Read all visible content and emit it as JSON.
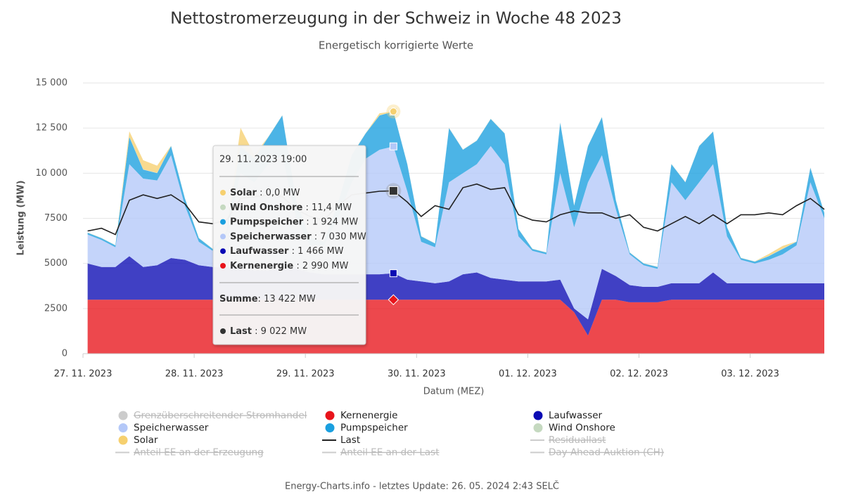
{
  "chart_data": {
    "type": "stacked_area",
    "title": "Nettostromerzeugung in der Schweiz in Woche 48 2023",
    "subtitle": "Energetisch korrigierte Werte",
    "y_label": "Leistung (MW)",
    "x_label": "Datum (MEZ)",
    "footer": "Energy-Charts.info - letztes Update: 26. 05. 2024 2:43 SELČ",
    "grid": true,
    "ylim": [
      0,
      15000
    ],
    "yticks": [
      0,
      2500,
      5000,
      7500,
      {
        "value": 10000,
        "label": "10 000"
      },
      {
        "value": 12500,
        "label": "12 500"
      },
      {
        "value": 15000,
        "label": "15 000"
      }
    ],
    "xlim": [
      "2023-11-27T00:00",
      "2023-12-03T16:00"
    ],
    "xticks": [
      {
        "value": "2023-11-27T00:00",
        "label": "27. 11. 2023"
      },
      {
        "value": "2023-11-28T00:00",
        "label": "28. 11. 2023"
      },
      {
        "value": "2023-11-29T00:00",
        "label": "29. 11. 2023"
      },
      {
        "value": "2023-11-30T00:00",
        "label": "30. 11. 2023"
      },
      {
        "value": "2023-12-01T00:00",
        "label": "01. 12. 2023"
      },
      {
        "value": "2023-12-02T00:00",
        "label": "02. 12. 2023"
      },
      {
        "value": "2023-12-03T00:00",
        "label": "03. 12. 2023"
      }
    ],
    "x": [
      "2023-11-27T01:00",
      "2023-11-27T04:00",
      "2023-11-27T07:00",
      "2023-11-27T10:00",
      "2023-11-27T13:00",
      "2023-11-27T16:00",
      "2023-11-27T19:00",
      "2023-11-27T22:00",
      "2023-11-28T01:00",
      "2023-11-28T04:00",
      "2023-11-28T07:00",
      "2023-11-28T10:00",
      "2023-11-28T13:00",
      "2023-11-28T16:00",
      "2023-11-28T19:00",
      "2023-11-28T22:00",
      "2023-11-29T01:00",
      "2023-11-29T04:00",
      "2023-11-29T07:00",
      "2023-11-29T10:00",
      "2023-11-29T13:00",
      "2023-11-29T16:00",
      "2023-11-29T19:00",
      "2023-11-29T22:00",
      "2023-11-30T01:00",
      "2023-11-30T04:00",
      "2023-11-30T07:00",
      "2023-11-30T10:00",
      "2023-11-30T13:00",
      "2023-11-30T16:00",
      "2023-11-30T19:00",
      "2023-11-30T22:00",
      "2023-12-01T01:00",
      "2023-12-01T04:00",
      "2023-12-01T07:00",
      "2023-12-01T10:00",
      "2023-12-01T13:00",
      "2023-12-01T16:00",
      "2023-12-01T19:00",
      "2023-12-01T22:00",
      "2023-12-02T01:00",
      "2023-12-02T04:00",
      "2023-12-02T07:00",
      "2023-12-02T10:00",
      "2023-12-02T13:00",
      "2023-12-02T16:00",
      "2023-12-02T19:00",
      "2023-12-02T22:00",
      "2023-12-03T01:00",
      "2023-12-03T04:00",
      "2023-12-03T07:00",
      "2023-12-03T10:00",
      "2023-12-03T13:00",
      "2023-12-03T16:00"
    ],
    "series": [
      {
        "name": "Grenzüberschreitender Stromhandel",
        "type": "area",
        "color": "#cccccc",
        "visible": false
      },
      {
        "name": "Kernenergie",
        "type": "area",
        "color": "#e8141b",
        "visible": true,
        "values": [
          2990,
          2990,
          2990,
          2990,
          2990,
          2990,
          2990,
          2990,
          2990,
          2990,
          2990,
          2990,
          2990,
          2990,
          2990,
          2990,
          2990,
          2990,
          2990,
          2990,
          2990,
          2990,
          2990,
          2990,
          2990,
          2990,
          2990,
          2990,
          2990,
          2990,
          2990,
          2990,
          2990,
          2990,
          2990,
          2300,
          1000,
          2990,
          2990,
          2850,
          2850,
          2850,
          2990,
          2990,
          2990,
          2990,
          2990,
          2990,
          2990,
          2990,
          2990,
          2990,
          2990,
          2990
        ]
      },
      {
        "name": "Laufwasser",
        "type": "area",
        "color": "#0a0ab4",
        "visible": true,
        "values": [
          2010,
          1810,
          1810,
          2410,
          1810,
          1910,
          2310,
          2210,
          1910,
          1810,
          1810,
          1710,
          1610,
          1610,
          1710,
          1710,
          1510,
          1410,
          1410,
          1410,
          1410,
          1410,
          1466,
          1110,
          1010,
          910,
          1010,
          1410,
          1510,
          1210,
          1110,
          1010,
          1010,
          1010,
          1110,
          200,
          900,
          1710,
          1310,
          950,
          850,
          850,
          910,
          910,
          910,
          1510,
          910,
          910,
          910,
          910,
          910,
          910,
          910,
          910
        ]
      },
      {
        "name": "Speicherwasser",
        "type": "area",
        "color": "#b4c8f8",
        "visible": true,
        "values": [
          1600,
          1500,
          1100,
          5100,
          4900,
          4700,
          5700,
          3000,
          1300,
          900,
          1800,
          5300,
          4900,
          5900,
          6300,
          2800,
          1500,
          1600,
          3100,
          5100,
          6400,
          6900,
          7030,
          4900,
          2200,
          2000,
          5500,
          5600,
          6000,
          7300,
          6400,
          2500,
          1700,
          1500,
          5900,
          4500,
          7600,
          6300,
          3700,
          1700,
          1200,
          1000,
          5600,
          4600,
          5600,
          6000,
          2600,
          1300,
          1100,
          1300,
          1600,
          2100,
          5600,
          3600
        ]
      },
      {
        "name": "Pumpspeicher",
        "type": "area",
        "color": "#1a9fdf",
        "visible": true,
        "values": [
          100,
          100,
          100,
          1500,
          500,
          400,
          500,
          400,
          200,
          100,
          200,
          1500,
          1300,
          1500,
          2200,
          1000,
          400,
          200,
          800,
          1500,
          1400,
          1900,
          1924,
          1500,
          300,
          200,
          3000,
          1300,
          1300,
          1500,
          1700,
          400,
          100,
          100,
          2800,
          1200,
          2000,
          2100,
          500,
          100,
          100,
          100,
          1000,
          1000,
          2000,
          1800,
          500,
          100,
          100,
          200,
          300,
          200,
          800,
          300
        ]
      },
      {
        "name": "Wind Onshore",
        "type": "area",
        "color": "#c5d9c0",
        "visible": true,
        "values": [
          20,
          20,
          20,
          20,
          20,
          20,
          20,
          20,
          20,
          20,
          20,
          20,
          20,
          20,
          20,
          20,
          20,
          20,
          20,
          20,
          20,
          20,
          11.4,
          20,
          20,
          20,
          20,
          20,
          20,
          20,
          20,
          20,
          20,
          20,
          20,
          20,
          20,
          20,
          20,
          20,
          20,
          20,
          20,
          20,
          20,
          20,
          20,
          20,
          20,
          20,
          20,
          20,
          20,
          20
        ]
      },
      {
        "name": "Solar",
        "type": "area",
        "color": "#f6d06f",
        "visible": true,
        "values": [
          0,
          0,
          0,
          300,
          500,
          400,
          0,
          0,
          0,
          0,
          0,
          1000,
          200,
          0,
          0,
          0,
          0,
          0,
          0,
          0,
          0,
          100,
          0,
          0,
          0,
          0,
          0,
          0,
          0,
          0,
          0,
          0,
          0,
          0,
          0,
          0,
          0,
          0,
          0,
          0,
          0,
          0,
          0,
          0,
          0,
          0,
          0,
          0,
          0,
          100,
          150,
          0,
          0,
          0
        ]
      },
      {
        "name": "Last",
        "type": "line",
        "color": "#222222",
        "visible": true,
        "values": [
          6800,
          6950,
          6600,
          8500,
          8800,
          8600,
          8800,
          8300,
          7300,
          7200,
          7400,
          8600,
          8700,
          8800,
          8700,
          8000,
          7600,
          7400,
          8200,
          8800,
          8900,
          9000,
          9022,
          8400,
          7600,
          8200,
          8000,
          9200,
          9400,
          9100,
          9200,
          7700,
          7400,
          7300,
          7700,
          7900,
          7800,
          7800,
          7500,
          7700,
          7000,
          6800,
          7200,
          7600,
          7200,
          7700,
          7200,
          7700,
          7700,
          7800,
          7700,
          8200,
          8600,
          8000
        ]
      },
      {
        "name": "Residuallast",
        "type": "line",
        "color": "#cccccc",
        "visible": false
      },
      {
        "name": "Anteil EE an der Erzeugung",
        "type": "line",
        "color": "#cccccc",
        "visible": false
      },
      {
        "name": "Anteil EE an der Last",
        "type": "line",
        "color": "#cccccc",
        "visible": false
      },
      {
        "name": "Day Ahead Auktion (CH)",
        "type": "line",
        "color": "#cccccc",
        "visible": false
      }
    ],
    "tooltip": {
      "x": {
        "value": "2023-11-29T19:00",
        "label": "29. 11. 2023 19:00"
      },
      "items": [
        {
          "name": "Solar",
          "value": 0,
          "label": "0,0 MW"
        },
        {
          "name": "Wind Onshore",
          "value": 11.4,
          "label": "11,4 MW"
        },
        {
          "name": "Pumpspeicher",
          "value": 1924,
          "label": "1 924 MW"
        },
        {
          "name": "Speicherwasser",
          "value": 7030,
          "label": "7 030 MW"
        },
        {
          "name": "Laufwasser",
          "value": 1466,
          "label": "1 466 MW"
        },
        {
          "name": "Kernenergie",
          "value": 2990,
          "label": "2 990 MW"
        }
      ],
      "sum": {
        "name": "Summe",
        "value": 13422,
        "label": "13 422 MW"
      },
      "last": {
        "name": "Last",
        "value": 9022,
        "label": "9 022 MW"
      }
    }
  }
}
